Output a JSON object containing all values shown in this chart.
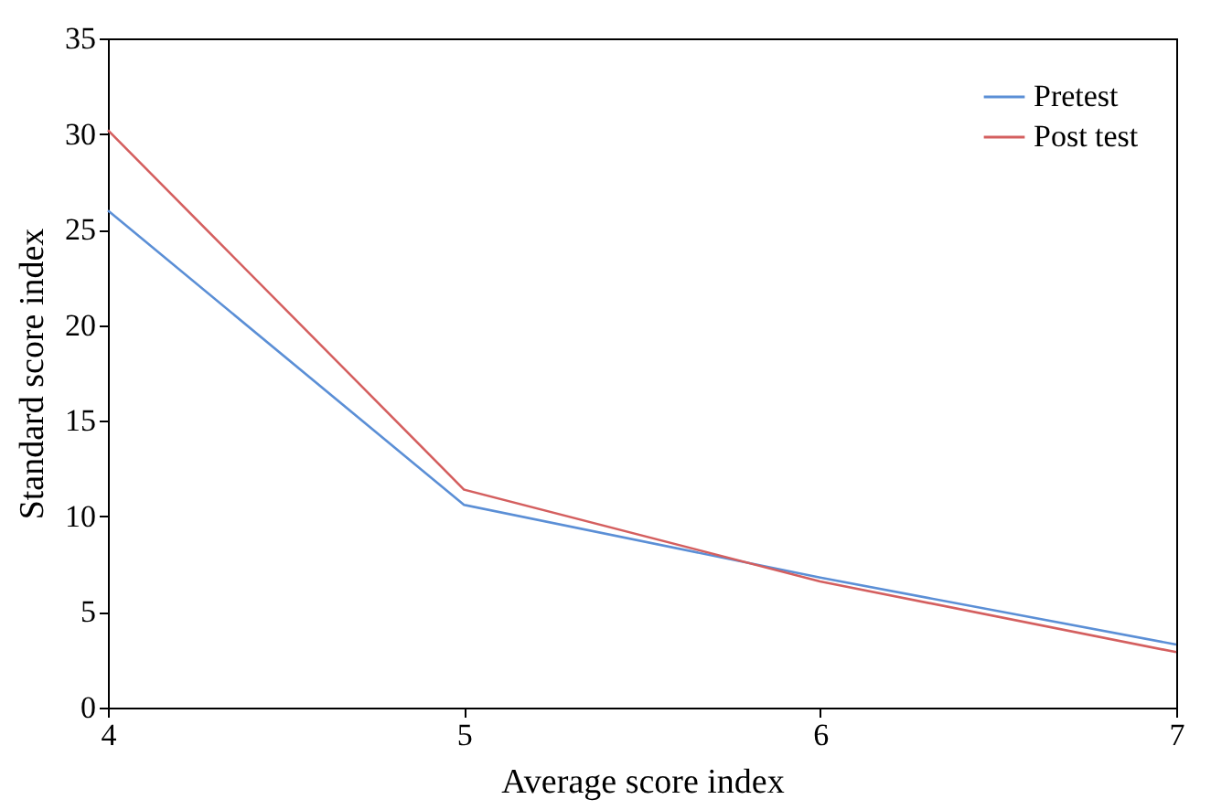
{
  "chart_data": {
    "type": "line",
    "xlabel": "Average score index",
    "ylabel": "Standard score index",
    "x": [
      4,
      5,
      6,
      7
    ],
    "xlim": [
      4,
      7
    ],
    "xticks": [
      4,
      5,
      6,
      7
    ],
    "ylim": [
      0,
      35
    ],
    "yticks": [
      0,
      5,
      10,
      15,
      20,
      25,
      30,
      35
    ],
    "series": [
      {
        "name": "Pretest",
        "color": "#5b8fd6",
        "values": [
          26.0,
          10.6,
          6.8,
          3.3
        ]
      },
      {
        "name": "Post test",
        "color": "#d45f5f",
        "values": [
          30.2,
          11.4,
          6.6,
          2.9
        ]
      }
    ],
    "grid": false,
    "legend": "top right",
    "marker": "none",
    "line_style": "solid"
  }
}
